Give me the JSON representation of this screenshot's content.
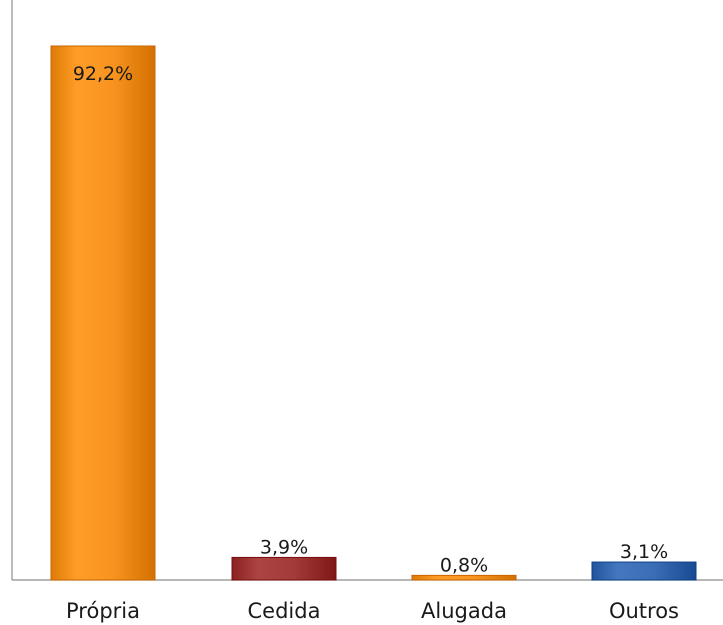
{
  "chart_data": {
    "type": "bar",
    "title": "",
    "xlabel": "",
    "ylabel": "",
    "categories": [
      "Própria",
      "Cedida",
      "Alugada",
      "Outros"
    ],
    "values": [
      92.2,
      3.9,
      0.8,
      3.1
    ],
    "value_labels": [
      "92,2%",
      "3,9%",
      "0,8%",
      "3,1%"
    ],
    "ylim": [
      0,
      100
    ],
    "grid": false,
    "legend": "none",
    "colors": [
      "#f7931e",
      "#a33a3a",
      "#f7931e",
      "#3a6db5"
    ]
  }
}
